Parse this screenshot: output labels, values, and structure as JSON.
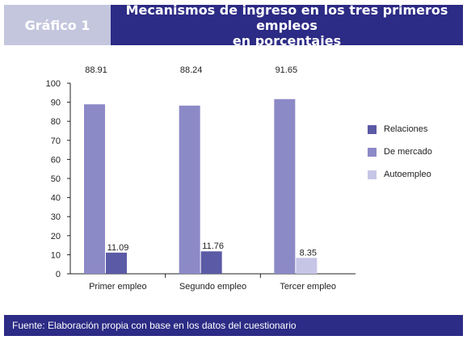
{
  "header": {
    "badge": "Gráfico 1",
    "title_line1": "Mecanismos de ingreso en los tres primeros empleos",
    "title_line2": "en porcentajes"
  },
  "footer": {
    "source": "Fuente: Elaboración propia con base en los datos del cuestionario"
  },
  "colors": {
    "header_bg": "#2c2b85",
    "badge_bg": "#c4c6de",
    "relaciones": "#5b5aa6",
    "de_mercado": "#8c89c7",
    "autoempleo": "#c7c5e6"
  },
  "chart_data": {
    "type": "bar",
    "title": "Mecanismos de ingreso en los tres primeros empleos en porcentajes",
    "xlabel": "",
    "ylabel": "",
    "categories": [
      "Primer empleo",
      "Segundo empleo",
      "Tercer empleo"
    ],
    "series": [
      {
        "name": "Relaciones",
        "color": "#5b5aa6",
        "values": [
          11.09,
          11.76,
          null
        ],
        "labels": [
          "11.09",
          "11.76",
          ""
        ]
      },
      {
        "name": "De mercado",
        "color": "#8c89c7",
        "values": [
          88.91,
          88.24,
          91.65
        ],
        "labels": [
          "88.91",
          "88.24",
          "91.65"
        ]
      },
      {
        "name": "Autoempleo",
        "color": "#c7c5e6",
        "values": [
          null,
          null,
          8.35
        ],
        "labels": [
          "",
          "",
          "8.35"
        ]
      }
    ],
    "bar_order": [
      "De mercado",
      "Relaciones",
      "Autoempleo"
    ],
    "ylim": [
      0,
      100
    ],
    "yticks": [
      0,
      10,
      20,
      30,
      40,
      50,
      60,
      70,
      80,
      90,
      100
    ],
    "grid": false,
    "legend_position": "right"
  }
}
